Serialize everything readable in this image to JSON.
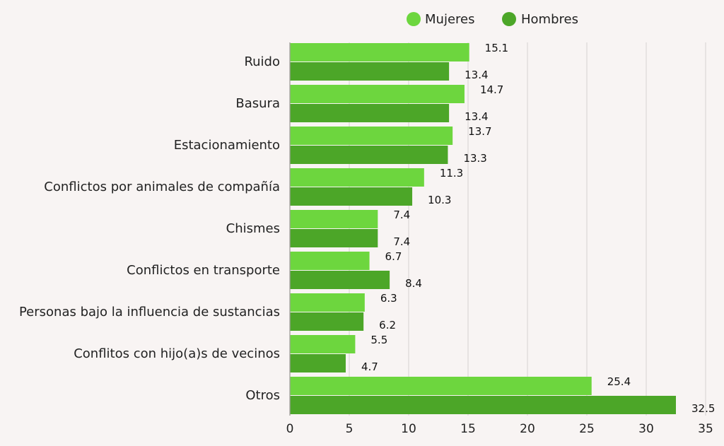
{
  "chart_data": {
    "type": "bar",
    "orientation": "horizontal",
    "title": "",
    "xlabel": "",
    "ylabel": "",
    "categories": [
      "Ruido",
      "Basura",
      "Estacionamiento",
      "Conflictos por animales de compañía",
      "Chismes",
      "Conflictos en transporte",
      "Personas bajo la influencia de sustancias",
      "Conflitos con hijo(a)s de vecinos",
      "Otros"
    ],
    "series": [
      {
        "name": "Mujeres",
        "color": "#6dd63e",
        "values": [
          15.1,
          14.7,
          13.7,
          11.3,
          7.4,
          6.7,
          6.3,
          5.5,
          25.4
        ],
        "value_labels": [
          "15.1",
          "14.7",
          "13.7",
          "11.3",
          "7.4",
          "6.7",
          "6.3",
          "5.5",
          "25.4"
        ]
      },
      {
        "name": "Hombres",
        "color": "#4ca628",
        "values": [
          13.4,
          13.4,
          13.3,
          10.3,
          7.4,
          8.4,
          6.2,
          4.7,
          32.5
        ],
        "value_labels": [
          "13.4",
          "13.4",
          "13.3",
          "10.3",
          "7.4",
          "8.4",
          "6.2",
          "4.7",
          "32.5"
        ]
      }
    ],
    "xlim": [
      0,
      35
    ],
    "xticks": [
      0,
      5,
      10,
      15,
      20,
      25,
      30,
      35
    ],
    "xtick_labels": [
      "0",
      "5",
      "10",
      "15",
      "20",
      "25",
      "30",
      "35"
    ],
    "grid": true,
    "legend_position": "top-right"
  }
}
